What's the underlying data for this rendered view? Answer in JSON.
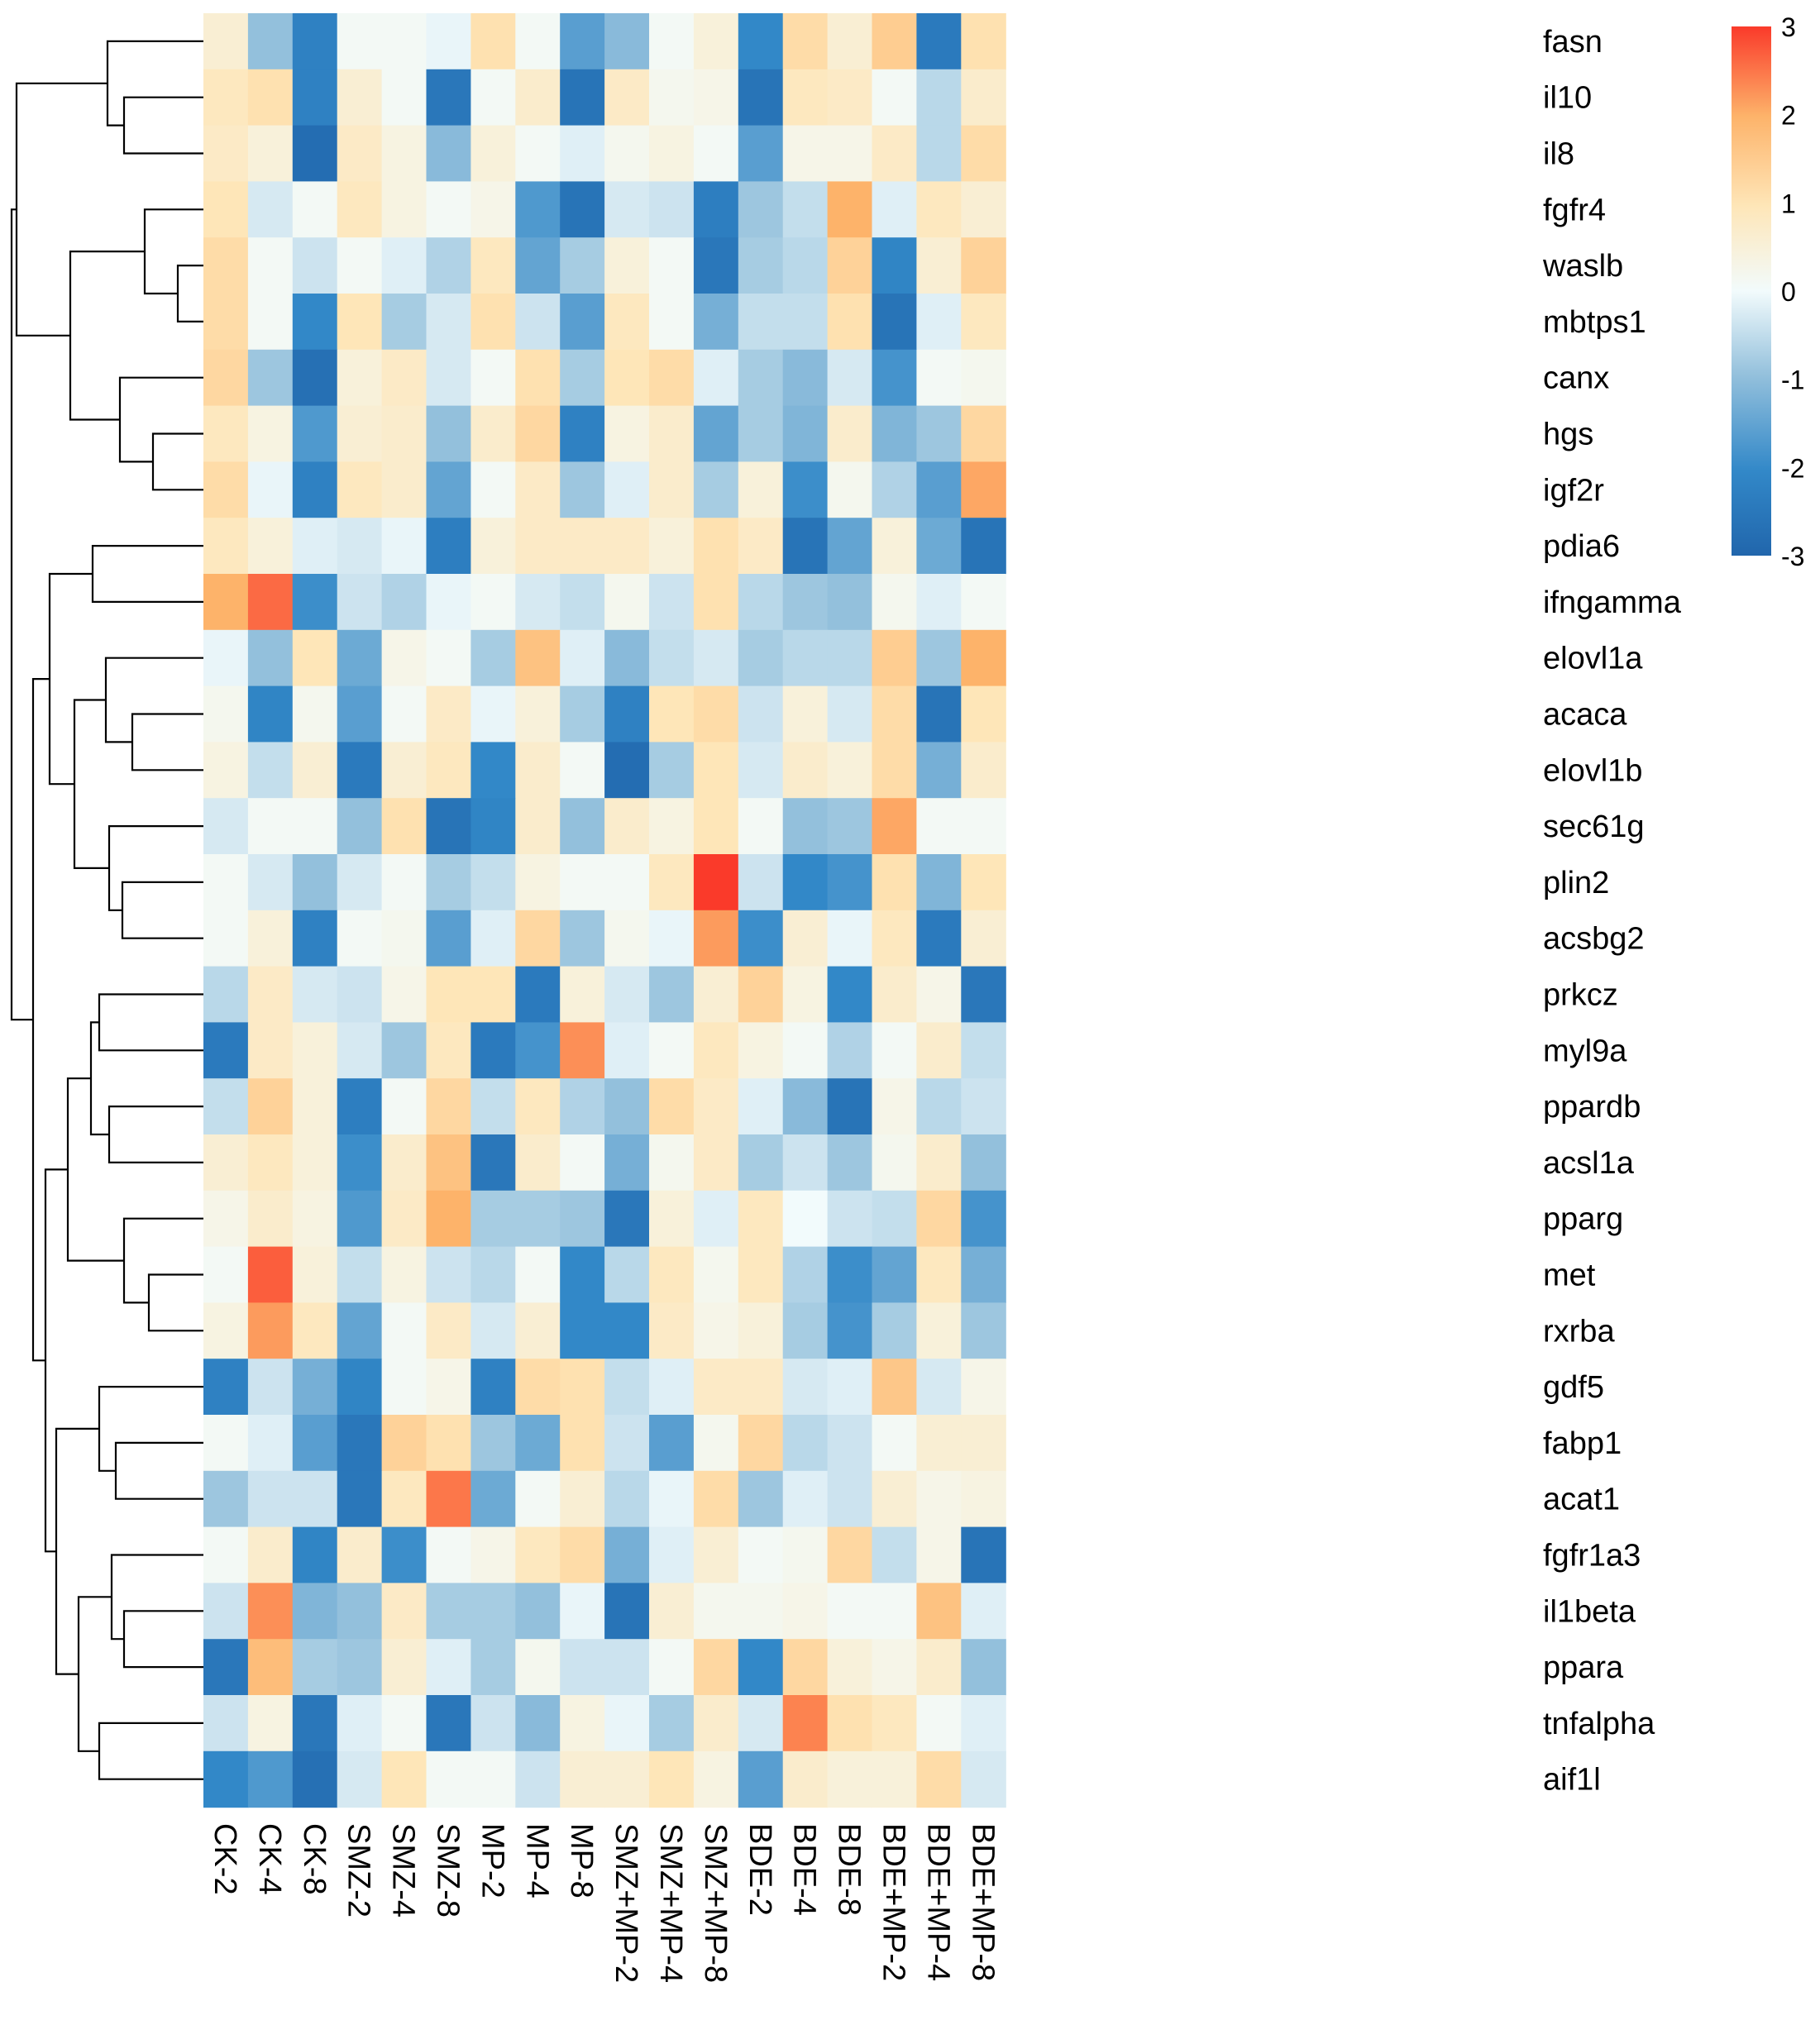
{
  "chart_data": {
    "type": "heatmap",
    "title": "",
    "xlabel": "",
    "ylabel": "",
    "columns": [
      "CK-2",
      "CK-4",
      "CK-8",
      "SMZ-2",
      "SMZ-4",
      "SMZ-8",
      "MP-2",
      "MP-4",
      "MP-8",
      "SMZ+MP-2",
      "SMZ+MP-4",
      "SMZ+MP-8",
      "BDE-2",
      "BDE-4",
      "BDE-8",
      "BDE+MP-2",
      "BDE+MP-4",
      "BDE+MP-8"
    ],
    "rows": [
      "fasn",
      "il10",
      "il8",
      "fgfr4",
      "waslb",
      "mbtps1",
      "canx",
      "hgs",
      "igf2r",
      "pdia6",
      "ifngamma",
      "elovl1a",
      "acaca",
      "elovl1b",
      "sec61g",
      "plin2",
      "acsbg2",
      "prkcz",
      "myl9a",
      "ppardb",
      "acsl1a",
      "pparg",
      "met",
      "rxrba",
      "gdf5",
      "fabp1",
      "acat1",
      "fgfr1a3",
      "il1beta",
      "ppara",
      "tnfalpha",
      "aif1l"
    ],
    "values": [
      [
        0.6,
        -1.0,
        -2.2,
        0.1,
        0.1,
        -0.1,
        1.1,
        0.1,
        -1.6,
        -1.1,
        0.1,
        0.5,
        -2.0,
        1.2,
        0.6,
        1.5,
        -2.4,
        1.1
      ],
      [
        0.9,
        1.1,
        -2.2,
        0.6,
        0.1,
        -2.5,
        0.1,
        0.7,
        -2.6,
        0.8,
        0.2,
        0.3,
        -2.6,
        0.9,
        0.8,
        0.1,
        -0.6,
        0.7
      ],
      [
        0.8,
        0.5,
        -2.8,
        0.8,
        0.4,
        -1.1,
        0.5,
        0.1,
        -0.2,
        0.2,
        0.4,
        0.1,
        -1.6,
        0.3,
        0.3,
        0.8,
        -0.6,
        1.2
      ],
      [
        1.0,
        -0.3,
        0.1,
        0.9,
        0.4,
        0.1,
        0.3,
        -1.7,
        -2.6,
        -0.3,
        -0.4,
        -2.3,
        -0.9,
        -0.5,
        2.0,
        -0.2,
        0.9,
        0.6
      ],
      [
        1.2,
        0.1,
        -0.4,
        0.1,
        -0.2,
        -0.7,
        0.9,
        -1.5,
        -0.8,
        0.5,
        0.1,
        -2.5,
        -0.8,
        -0.6,
        1.4,
        -2.1,
        0.6,
        1.4
      ],
      [
        1.2,
        0.1,
        -2.0,
        1.0,
        -0.8,
        -0.3,
        1.1,
        -0.4,
        -1.6,
        0.9,
        0.1,
        -1.3,
        -0.5,
        -0.5,
        1.1,
        -2.6,
        -0.2,
        0.9
      ],
      [
        1.3,
        -0.9,
        -2.7,
        0.5,
        0.8,
        -0.3,
        0.1,
        1.1,
        -0.8,
        1.0,
        1.2,
        -0.2,
        -0.8,
        -1.1,
        -0.3,
        -1.8,
        0.1,
        0.2
      ],
      [
        0.9,
        0.4,
        -1.7,
        0.6,
        0.7,
        -1.0,
        0.7,
        1.3,
        -2.2,
        0.4,
        0.7,
        -1.5,
        -0.8,
        -1.2,
        0.7,
        -1.2,
        -0.9,
        1.3
      ],
      [
        1.2,
        -0.1,
        -2.2,
        0.9,
        0.7,
        -1.5,
        0.1,
        0.8,
        -0.9,
        -0.2,
        0.7,
        -0.8,
        0.5,
        -1.9,
        0.2,
        -0.7,
        -1.6,
        2.1
      ],
      [
        0.9,
        0.5,
        -0.2,
        -0.3,
        -0.1,
        -2.3,
        0.5,
        0.8,
        0.8,
        0.8,
        0.5,
        1.1,
        0.8,
        -2.6,
        -1.5,
        0.5,
        -1.4,
        -2.6
      ],
      [
        2.0,
        2.6,
        -1.9,
        -0.4,
        -0.7,
        -0.1,
        0.1,
        -0.3,
        -0.5,
        0.2,
        -0.4,
        1.1,
        -0.6,
        -0.9,
        -1.0,
        0.2,
        -0.2,
        0.1
      ],
      [
        -0.1,
        -1.0,
        1.0,
        -1.4,
        0.3,
        0.1,
        -0.8,
        1.7,
        -0.2,
        -1.1,
        -0.5,
        -0.3,
        -0.8,
        -0.6,
        -0.6,
        1.5,
        -0.9,
        2.0
      ],
      [
        0.2,
        -2.1,
        0.2,
        -1.6,
        0.1,
        0.8,
        -0.1,
        0.5,
        -0.8,
        -2.2,
        1.0,
        1.2,
        -0.4,
        0.5,
        -0.3,
        1.2,
        -2.6,
        1.0
      ],
      [
        0.4,
        -0.5,
        0.6,
        -2.4,
        0.6,
        0.9,
        -2.0,
        0.7,
        0.1,
        -2.8,
        -0.8,
        1.0,
        -0.3,
        0.7,
        0.5,
        1.2,
        -1.3,
        0.7
      ],
      [
        -0.3,
        0.1,
        0.1,
        -1.0,
        1.1,
        -2.6,
        -2.1,
        0.7,
        -1.0,
        0.7,
        0.4,
        1.0,
        0.1,
        -1.0,
        -0.9,
        2.1,
        0.1,
        0.1
      ],
      [
        0.1,
        -0.3,
        -1.0,
        -0.3,
        0.1,
        -0.8,
        -0.5,
        0.4,
        0.1,
        0.1,
        0.9,
        3.0,
        -0.4,
        -2.0,
        -1.8,
        1.1,
        -1.2,
        1.0
      ],
      [
        0.1,
        0.5,
        -2.2,
        0.1,
        0.2,
        -1.6,
        -0.2,
        1.3,
        -0.9,
        0.2,
        -0.1,
        2.2,
        -1.9,
        0.6,
        -0.1,
        0.9,
        -2.4,
        0.6
      ],
      [
        -0.6,
        0.8,
        -0.3,
        -0.4,
        0.3,
        1.0,
        1.0,
        -2.4,
        0.5,
        -0.3,
        -0.9,
        0.6,
        1.4,
        0.4,
        -2.0,
        0.7,
        0.3,
        -2.5
      ],
      [
        -2.4,
        0.8,
        0.5,
        -0.3,
        -0.9,
        0.9,
        -2.4,
        -1.8,
        2.3,
        -0.2,
        0.1,
        0.9,
        0.4,
        0.1,
        -0.7,
        0.1,
        0.7,
        -0.5
      ],
      [
        -0.5,
        1.4,
        0.5,
        -2.3,
        0.1,
        1.3,
        -0.5,
        0.9,
        -0.7,
        -1.0,
        1.2,
        0.8,
        -0.2,
        -1.1,
        -2.6,
        0.3,
        -0.6,
        -0.4
      ],
      [
        0.6,
        0.9,
        0.5,
        -1.9,
        0.7,
        1.7,
        -2.5,
        0.7,
        0.1,
        -1.3,
        0.2,
        0.8,
        -0.8,
        -0.4,
        -0.9,
        0.2,
        0.7,
        -1.0
      ],
      [
        0.3,
        0.7,
        0.4,
        -1.7,
        0.8,
        2.0,
        -0.8,
        -0.8,
        -0.9,
        -2.5,
        0.5,
        -0.2,
        0.9,
        0.0,
        -0.4,
        -0.5,
        1.3,
        -1.8
      ],
      [
        0.1,
        2.7,
        0.5,
        -0.5,
        0.4,
        -0.4,
        -0.6,
        0.1,
        -2.0,
        -0.6,
        0.9,
        0.2,
        0.9,
        -0.7,
        -1.9,
        -1.5,
        0.9,
        -1.3
      ],
      [
        0.4,
        2.2,
        0.9,
        -1.5,
        0.1,
        0.8,
        -0.3,
        0.6,
        -2.0,
        -2.0,
        0.8,
        0.3,
        0.5,
        -0.8,
        -1.8,
        -0.8,
        0.5,
        -0.9
      ],
      [
        -2.2,
        -0.4,
        -1.3,
        -2.1,
        0.1,
        0.3,
        -2.2,
        1.2,
        1.1,
        -0.5,
        -0.2,
        0.8,
        0.8,
        -0.3,
        -0.2,
        1.6,
        -0.3,
        0.3
      ],
      [
        0.1,
        -0.2,
        -1.6,
        -2.5,
        1.4,
        1.1,
        -0.9,
        -1.4,
        1.1,
        -0.4,
        -1.6,
        0.2,
        1.3,
        -0.6,
        -0.4,
        0.1,
        0.6,
        0.6
      ],
      [
        -0.9,
        -0.4,
        -0.4,
        -2.5,
        0.9,
        2.5,
        -1.4,
        0.1,
        0.6,
        -0.6,
        -0.1,
        1.2,
        -0.9,
        -0.2,
        -0.4,
        0.6,
        0.3,
        0.4
      ],
      [
        0.1,
        0.7,
        -2.1,
        0.7,
        -1.9,
        0.1,
        0.3,
        0.9,
        1.2,
        -1.3,
        -0.2,
        0.6,
        0.1,
        0.2,
        1.3,
        -0.5,
        0.3,
        -2.6
      ],
      [
        -0.4,
        2.3,
        -1.2,
        -1.0,
        0.8,
        -0.8,
        -0.8,
        -1.0,
        -0.1,
        -2.6,
        0.6,
        0.2,
        0.2,
        0.3,
        0.1,
        0.1,
        1.7,
        -0.2
      ],
      [
        -2.5,
        1.8,
        -0.8,
        -0.9,
        0.6,
        -0.2,
        -0.8,
        0.2,
        -0.4,
        -0.4,
        0.1,
        1.3,
        -2.0,
        1.3,
        0.5,
        0.3,
        0.7,
        -1.0
      ],
      [
        -0.4,
        0.4,
        -2.5,
        -0.2,
        0.1,
        -2.5,
        -0.4,
        -1.1,
        0.4,
        -0.1,
        -0.8,
        0.7,
        -0.3,
        2.4,
        1.1,
        0.9,
        0.1,
        -0.2
      ],
      [
        -2.0,
        -1.7,
        -2.7,
        -0.3,
        1.0,
        0.1,
        0.1,
        -0.4,
        0.6,
        0.6,
        1.0,
        0.4,
        -1.6,
        0.7,
        0.5,
        0.5,
        1.2,
        -0.3
      ]
    ],
    "zlim": [
      -3,
      3
    ],
    "colorbar": {
      "ticks": [
        3,
        2,
        1,
        0,
        -1,
        -2,
        -3
      ],
      "tick_labels": [
        "3",
        "2",
        "1",
        "0",
        "-1",
        "-2",
        "-3"
      ],
      "colors": [
        "#2b7bba",
        "#e0f3f8",
        "#ffffff",
        "#fee090",
        "#f5422b"
      ]
    },
    "dendrogram": "rows",
    "legend": "top-right colorbar"
  }
}
